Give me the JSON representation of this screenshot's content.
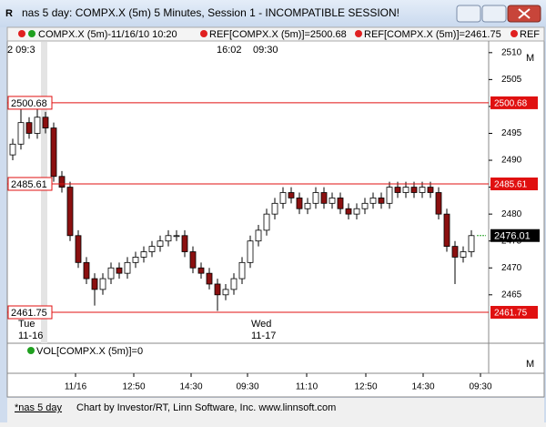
{
  "window": {
    "title": "nas 5 day: COMPX.X (5m) 5 Minutes, Session 1 - INCOMPATIBLE SESSION!"
  },
  "legend": {
    "symbol": "COMPX.X (5m)-11/16/10 10:20",
    "ref1": "REF[COMPX.X (5m)]=2500.68",
    "ref2": "REF[COMPX.X (5m)]=2461.75",
    "ref3": "REF"
  },
  "top_labels": [
    "2 09:3",
    "16:02",
    "09:30"
  ],
  "axis_marks": [
    "M",
    "M"
  ],
  "chart_data": {
    "type": "candlestick",
    "open": [
      2491,
      2493,
      2497,
      2495,
      2498,
      2496,
      2487,
      2485,
      2476,
      2471,
      2468,
      2466,
      2468,
      2470,
      2469,
      2471,
      2472,
      2473,
      2474,
      2475,
      2476,
      2476,
      2473,
      2470,
      2469,
      2467,
      2465,
      2466,
      2468,
      2471,
      2475,
      2477,
      2480,
      2482,
      2484,
      2483,
      2481,
      2482,
      2484,
      2482,
      2483,
      2481,
      2480,
      2481,
      2482,
      2483,
      2482,
      2485,
      2484,
      2485,
      2484,
      2485,
      2484,
      2480,
      2474,
      2472,
      2473
    ],
    "high": [
      2494,
      2500,
      2498,
      2500,
      2499,
      2497,
      2488,
      2486,
      2477,
      2472,
      2469,
      2469,
      2471,
      2471,
      2472,
      2473,
      2474,
      2475,
      2476,
      2477,
      2477,
      2477,
      2474,
      2471,
      2470,
      2468,
      2467,
      2469,
      2472,
      2476,
      2478,
      2481,
      2483,
      2485,
      2485,
      2484,
      2483,
      2485,
      2485,
      2484,
      2484,
      2482,
      2482,
      2483,
      2484,
      2484,
      2486,
      2486,
      2486,
      2486,
      2486,
      2486,
      2485,
      2481,
      2475,
      2474,
      2477
    ],
    "low": [
      2490,
      2492,
      2494,
      2494,
      2495,
      2486,
      2484,
      2475,
      2470,
      2467,
      2463,
      2465,
      2467,
      2468,
      2468,
      2470,
      2471,
      2472,
      2473,
      2474,
      2475,
      2472,
      2469,
      2468,
      2466,
      2462,
      2464,
      2465,
      2467,
      2470,
      2474,
      2476,
      2479,
      2481,
      2482,
      2480,
      2480,
      2481,
      2481,
      2481,
      2480,
      2479,
      2479,
      2480,
      2481,
      2481,
      2481,
      2483,
      2483,
      2483,
      2483,
      2483,
      2479,
      2473,
      2467,
      2471,
      2472
    ],
    "close": [
      2493,
      2497,
      2495,
      2498,
      2496,
      2487,
      2485,
      2476,
      2471,
      2468,
      2466,
      2468,
      2470,
      2469,
      2471,
      2472,
      2473,
      2474,
      2475,
      2476,
      2476,
      2473,
      2470,
      2469,
      2467,
      2465,
      2466,
      2468,
      2471,
      2475,
      2477,
      2480,
      2482,
      2484,
      2483,
      2481,
      2482,
      2484,
      2482,
      2483,
      2481,
      2480,
      2481,
      2482,
      2483,
      2482,
      2485,
      2484,
      2485,
      2484,
      2485,
      2484,
      2480,
      2474,
      2472,
      2473,
      2476
    ],
    "up_color": "#ffffff",
    "down_color": "#8b1010",
    "ylim": [
      2456,
      2512
    ],
    "yticks": [
      2465,
      2470,
      2475,
      2480,
      2485,
      2490,
      2495,
      2500,
      2505,
      2510
    ],
    "ref_lines": [
      2500.68,
      2485.61,
      2461.75
    ],
    "ref_color": "#e01010",
    "last_price": 2476.01,
    "day_labels": [
      [
        "Tue",
        "11-16"
      ],
      [
        "Wed",
        "11-17"
      ]
    ]
  },
  "volume_label": "VOL[COMPX.X (5m)]=0",
  "time_labels": [
    "11/16",
    "12:50",
    "14:30",
    "09:30",
    "11:10",
    "12:50",
    "14:30",
    "09:30"
  ],
  "status": {
    "tab": "*nas 5 day",
    "credit": "Chart by Investor/RT, Linn Software, Inc. www.linnsoft.com"
  }
}
